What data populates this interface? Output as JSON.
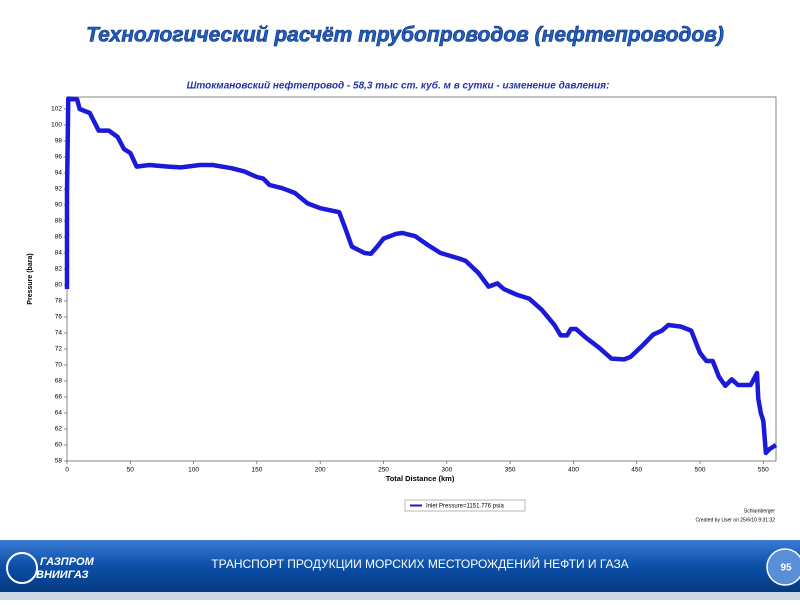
{
  "slide_title": "Технологический расчёт трубопроводов (нефтепроводов)",
  "chart_data": {
    "type": "line",
    "title": "Штокмановский нефтепровод - 58,3 тыс ст. куб. м в сутки - изменение давления:",
    "x_label": "Total Distance (km)",
    "y_label": "Pressure (bara)",
    "x": [
      0,
      0,
      1,
      8,
      10,
      18,
      25,
      33,
      40,
      45,
      50,
      55,
      65,
      80,
      90,
      105,
      115,
      130,
      140,
      150,
      155,
      160,
      170,
      180,
      190,
      200,
      215,
      220,
      225,
      235,
      240,
      245,
      250,
      260,
      265,
      275,
      285,
      295,
      310,
      315,
      325,
      333,
      340,
      345,
      355,
      365,
      375,
      385,
      390,
      395,
      398,
      402,
      410,
      420,
      430,
      440,
      445,
      455,
      463,
      470,
      475,
      485,
      493,
      500,
      505,
      510,
      515,
      520,
      525,
      530,
      540,
      545,
      546,
      548,
      550,
      552,
      555,
      560
    ],
    "series": [
      {
        "name": "Inlet Pressure=1151.776 psia",
        "color": "#1a1ad8",
        "values": [
          79.5,
          91.5,
          103.3,
          103.2,
          102,
          101.5,
          99.3,
          99.3,
          98.5,
          97,
          96.5,
          94.8,
          95,
          94.8,
          94.7,
          95,
          95,
          94.6,
          94.2,
          93.5,
          93.3,
          92.5,
          92.1,
          91.5,
          90.2,
          89.6,
          89.1,
          87,
          84.8,
          84,
          83.9,
          84.8,
          85.8,
          86.4,
          86.5,
          86.1,
          85,
          84,
          83.3,
          83,
          81.5,
          79.8,
          80.2,
          79.5,
          78.8,
          78.3,
          76.9,
          75,
          73.7,
          73.7,
          74.5,
          74.5,
          73.4,
          72.2,
          70.8,
          70.7,
          71,
          72.5,
          73.8,
          74.3,
          75,
          74.8,
          74.3,
          71.5,
          70.5,
          70.5,
          68.5,
          67.4,
          68.2,
          67.5,
          67.5,
          69,
          65.8,
          64,
          63,
          59,
          59.5,
          60
        ]
      }
    ],
    "xlim": [
      0,
      560
    ],
    "ylim": [
      58,
      103.5
    ],
    "xticks": [
      0,
      50,
      100,
      150,
      200,
      250,
      300,
      350,
      400,
      450,
      500,
      550
    ],
    "yticks": [
      58,
      60,
      62,
      64,
      66,
      68,
      70,
      72,
      74,
      76,
      78,
      80,
      82,
      84,
      86,
      88,
      90,
      92,
      94,
      96,
      98,
      100,
      102
    ],
    "credit": "Schlumberger",
    "created": "Created by User on 25/6/10 9:31:32"
  },
  "footer": {
    "logo_top": "ГАЗПРОМ",
    "logo_bottom": "ВНИИГАЗ",
    "text": "ТРАНСПОРТ  ПРОДУКЦИИ МОРСКИХ МЕСТОРОЖДЕНИЙ  НЕФТИ И ГАЗА",
    "page": "95"
  }
}
